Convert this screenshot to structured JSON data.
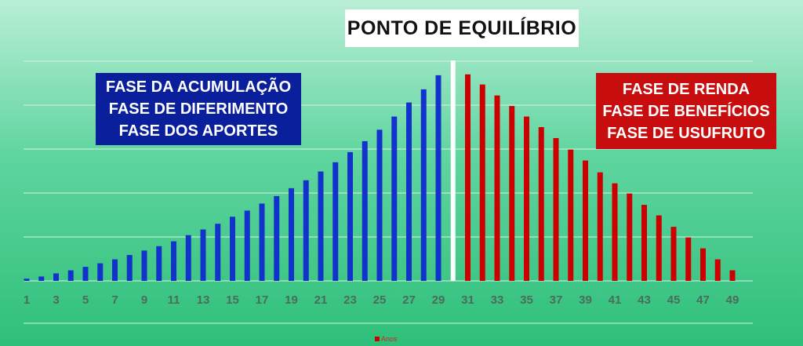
{
  "title": "PONTO DE EQUILÍBRIO",
  "phase_left": {
    "lines": [
      "FASE DA ACUMULAÇÃO",
      "FASE DE DIFERIMENTO",
      "FASE DOS APORTES"
    ],
    "color": "#0a1f9c"
  },
  "phase_right": {
    "lines": [
      "FASE DE RENDA",
      "FASE DE BENEFÍCIOS",
      "FASE DE USUFRUTO"
    ],
    "color": "#c70d0d"
  },
  "legend_label": "Anos",
  "chart_data": {
    "type": "bar",
    "x": [
      1,
      2,
      3,
      4,
      5,
      6,
      7,
      8,
      9,
      10,
      11,
      12,
      13,
      14,
      15,
      16,
      17,
      18,
      19,
      20,
      21,
      22,
      23,
      24,
      25,
      26,
      27,
      28,
      29,
      31,
      32,
      33,
      34,
      35,
      36,
      37,
      38,
      39,
      40,
      41,
      42,
      43,
      44,
      45,
      46,
      47,
      48,
      49
    ],
    "tick_labels": [
      "1",
      "3",
      "5",
      "7",
      "9",
      "11",
      "13",
      "15",
      "17",
      "19",
      "21",
      "23",
      "25",
      "27",
      "29",
      "31",
      "33",
      "35",
      "37",
      "39",
      "41",
      "43",
      "45",
      "47",
      "49"
    ],
    "series": [
      {
        "color": "#1133cc",
        "x": [
          1,
          2,
          3,
          4,
          5,
          6,
          7,
          8,
          9,
          10,
          11,
          12,
          13,
          14,
          15,
          16,
          17,
          18,
          19,
          20,
          21,
          22,
          23,
          24,
          25,
          26,
          27,
          28,
          29
        ],
        "values": [
          0.5,
          1.0,
          1.7,
          2.4,
          3.2,
          4.0,
          4.9,
          5.9,
          6.9,
          7.9,
          9.0,
          10.4,
          11.7,
          13.0,
          14.6,
          16.0,
          17.6,
          19.3,
          21.1,
          22.9,
          24.9,
          27.0,
          29.3,
          31.8,
          34.4,
          37.4,
          40.6,
          43.6,
          46.8
        ]
      },
      {
        "color": "#cc0000",
        "x": [
          31,
          32,
          33,
          34,
          35,
          36,
          37,
          38,
          39,
          40,
          41,
          42,
          43,
          44,
          45,
          46,
          47,
          48,
          49
        ],
        "values": [
          47.0,
          44.7,
          42.2,
          39.8,
          37.4,
          35.0,
          32.5,
          29.9,
          27.4,
          24.7,
          22.2,
          19.9,
          17.3,
          14.9,
          12.3,
          9.9,
          7.4,
          4.9,
          2.4
        ]
      }
    ],
    "ylim": [
      0,
      50
    ],
    "grid": true,
    "equilibrium_marker": true,
    "legend_position": "bottom"
  }
}
